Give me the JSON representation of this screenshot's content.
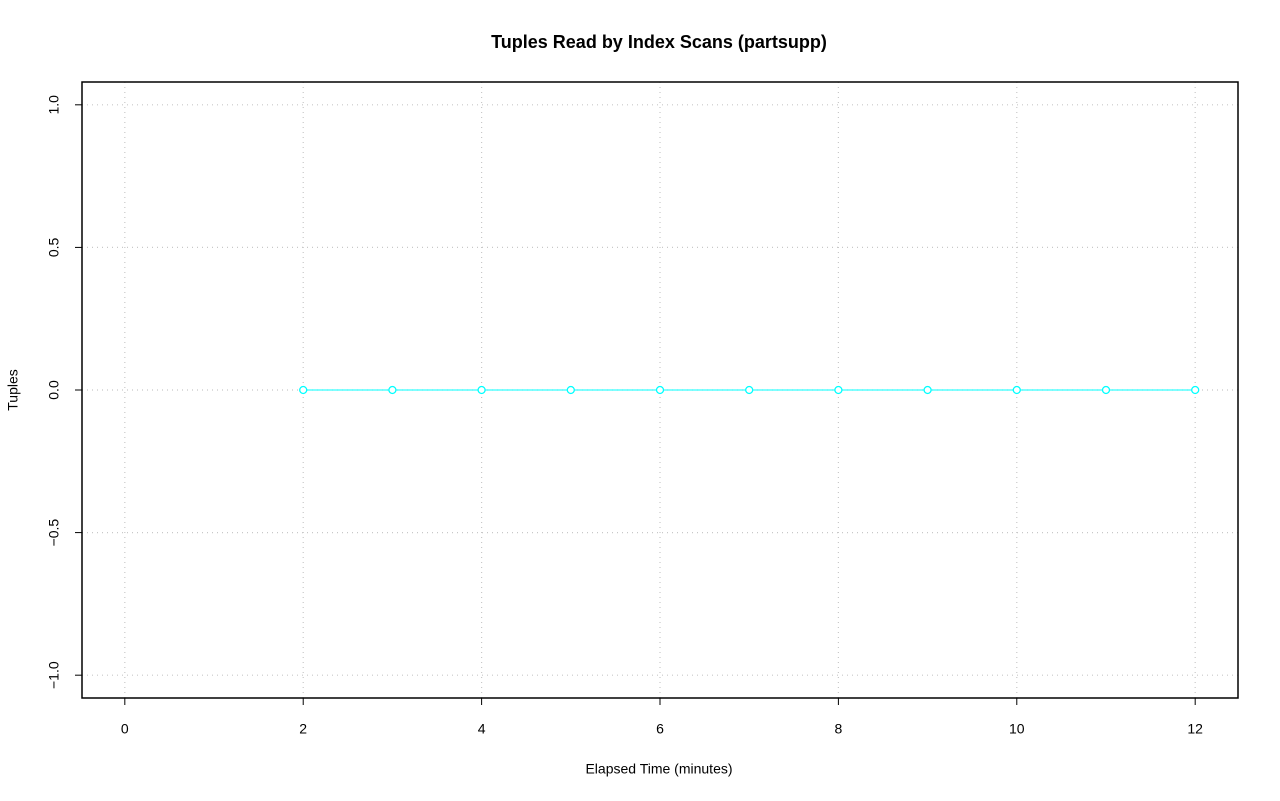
{
  "chart_data": {
    "type": "line",
    "title": "Tuples Read by Index Scans (partsupp)",
    "x_label": "Elapsed Time (minutes)",
    "y_label": "Tuples",
    "x": [
      2,
      3,
      4,
      5,
      6,
      7,
      8,
      9,
      10,
      11,
      12
    ],
    "series": [
      {
        "color": "#00ffff",
        "values": [
          0,
          0,
          0,
          0,
          0,
          0,
          0,
          0,
          0,
          0,
          0
        ]
      }
    ],
    "xlim": [
      -0.48,
      12.48
    ],
    "ylim": [
      -1.08,
      1.08
    ],
    "xticks": [
      0,
      2,
      4,
      6,
      8,
      10,
      12
    ],
    "yticks": [
      {
        "value": -1,
        "label": "−1.0"
      },
      {
        "value": -0.5,
        "label": "−0.5"
      },
      {
        "value": 0,
        "label": "0.0"
      },
      {
        "value": 0.5,
        "label": "0.5"
      },
      {
        "value": 1,
        "label": "1.0"
      }
    ],
    "grid": true
  }
}
